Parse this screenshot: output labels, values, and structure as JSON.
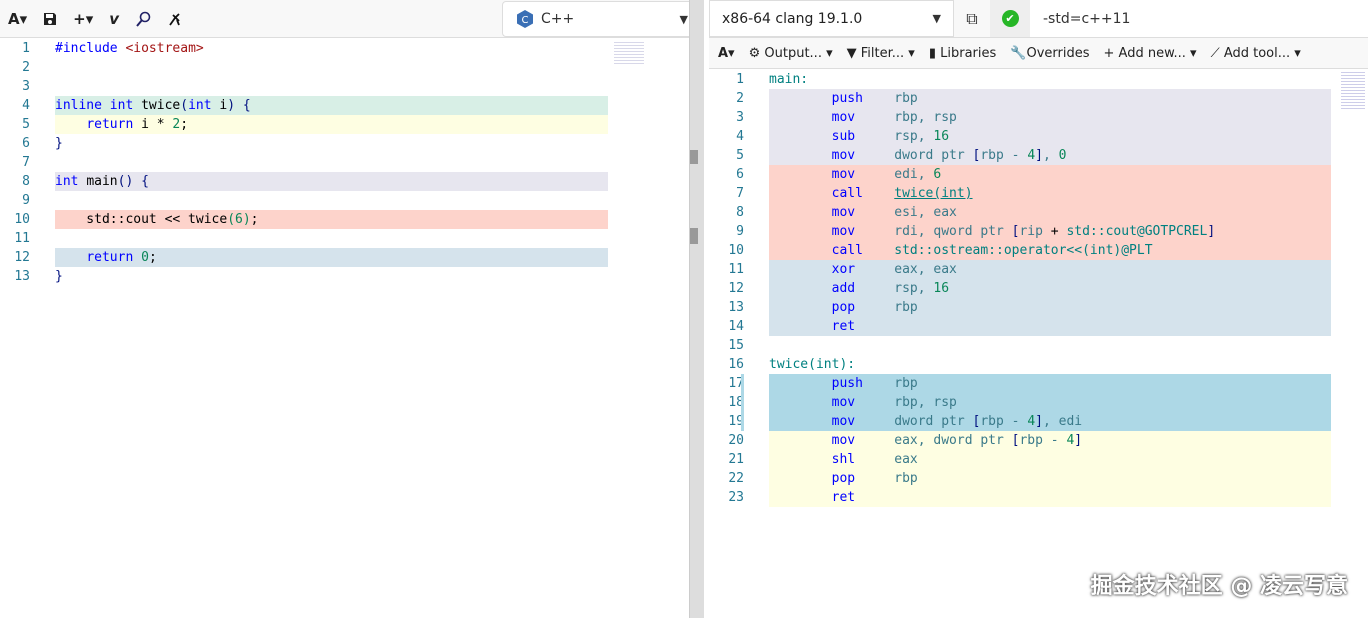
{
  "editor": {
    "toolbar": {
      "font_icon": "A▾",
      "save_icon": "save-icon",
      "add_label": "+▾",
      "vim_label": "v",
      "language": "C++"
    },
    "lines": [
      {
        "n": "1",
        "bg": "",
        "tokens": [
          [
            "pp",
            "#include "
          ],
          [
            "str",
            "<iostream>"
          ]
        ]
      },
      {
        "n": "2",
        "bg": "",
        "tokens": []
      },
      {
        "n": "3",
        "bg": "",
        "tokens": []
      },
      {
        "n": "4",
        "bg": "bg-green",
        "tokens": [
          [
            "kw",
            "inline int "
          ],
          [
            "fn",
            "twice"
          ],
          [
            "op",
            "("
          ],
          [
            "kw",
            "int "
          ],
          [
            "fn",
            "i"
          ],
          [
            "op",
            ") {"
          ]
        ]
      },
      {
        "n": "5",
        "bg": "bg-yellow",
        "tokens": [
          [
            "tx",
            "    "
          ],
          [
            "kw",
            "return "
          ],
          [
            "fn",
            "i * "
          ],
          [
            "num",
            "2"
          ],
          [
            "fn",
            ";"
          ]
        ]
      },
      {
        "n": "6",
        "bg": "",
        "tokens": [
          [
            "op",
            "}"
          ]
        ]
      },
      {
        "n": "7",
        "bg": "",
        "tokens": []
      },
      {
        "n": "8",
        "bg": "bg-lav",
        "tokens": [
          [
            "kw",
            "int "
          ],
          [
            "fn",
            "main"
          ],
          [
            "op",
            "() {"
          ]
        ]
      },
      {
        "n": "9",
        "bg": "",
        "tokens": []
      },
      {
        "n": "10",
        "bg": "bg-red",
        "tokens": [
          [
            "tx",
            "    std::cout << twice"
          ],
          [
            "num",
            "("
          ],
          [
            "num",
            "6"
          ],
          [
            "num",
            ")"
          ],
          [
            "tx",
            ";"
          ]
        ]
      },
      {
        "n": "11",
        "bg": "",
        "tokens": []
      },
      {
        "n": "12",
        "bg": "bg-blue",
        "tokens": [
          [
            "tx",
            "    "
          ],
          [
            "kw",
            "return "
          ],
          [
            "num",
            "0"
          ],
          [
            "tx",
            ";"
          ]
        ]
      },
      {
        "n": "13",
        "bg": "",
        "tokens": [
          [
            "op",
            "}"
          ]
        ]
      }
    ]
  },
  "compiler": {
    "name": "x86-64 clang 19.1.0",
    "options": "-std=c++11",
    "status": "success",
    "toolbar": [
      "Output...",
      "Filter...",
      "Libraries",
      "Overrides",
      "+ Add new...",
      "Add tool..."
    ],
    "lines": [
      {
        "n": "1",
        "bg": "",
        "tokens": [
          [
            "lbl",
            "main:"
          ]
        ]
      },
      {
        "n": "2",
        "bg": "bg-lav",
        "tokens": [
          [
            "tx",
            "        "
          ],
          [
            "kw",
            "push    "
          ],
          [
            "reg",
            "rbp"
          ]
        ]
      },
      {
        "n": "3",
        "bg": "bg-lav",
        "tokens": [
          [
            "tx",
            "        "
          ],
          [
            "kw",
            "mov     "
          ],
          [
            "reg",
            "rbp, rsp"
          ]
        ]
      },
      {
        "n": "4",
        "bg": "bg-lav",
        "tokens": [
          [
            "tx",
            "        "
          ],
          [
            "kw",
            "sub     "
          ],
          [
            "reg",
            "rsp, "
          ],
          [
            "num",
            "16"
          ]
        ]
      },
      {
        "n": "5",
        "bg": "bg-lav",
        "tokens": [
          [
            "tx",
            "        "
          ],
          [
            "kw",
            "mov     "
          ],
          [
            "reg",
            "dword ptr "
          ],
          [
            "op",
            "["
          ],
          [
            "reg",
            "rbp - "
          ],
          [
            "num",
            "4"
          ],
          [
            "op",
            "]"
          ],
          [
            "reg",
            ", "
          ],
          [
            "num",
            "0"
          ]
        ]
      },
      {
        "n": "6",
        "bg": "bg-red",
        "tokens": [
          [
            "tx",
            "        "
          ],
          [
            "kw",
            "mov     "
          ],
          [
            "reg",
            "edi, "
          ],
          [
            "num",
            "6"
          ]
        ]
      },
      {
        "n": "7",
        "bg": "bg-red",
        "tokens": [
          [
            "tx",
            "        "
          ],
          [
            "kw",
            "call    "
          ],
          [
            "lnk",
            "twice(int)"
          ]
        ]
      },
      {
        "n": "8",
        "bg": "bg-red",
        "tokens": [
          [
            "tx",
            "        "
          ],
          [
            "kw",
            "mov     "
          ],
          [
            "reg",
            "esi, eax"
          ]
        ]
      },
      {
        "n": "9",
        "bg": "bg-red",
        "tokens": [
          [
            "tx",
            "        "
          ],
          [
            "kw",
            "mov     "
          ],
          [
            "reg",
            "rdi, qword ptr "
          ],
          [
            "op",
            "["
          ],
          [
            "reg",
            "rip "
          ],
          [
            "tx",
            "+ "
          ],
          [
            "lbl",
            "std::cout@GOTPCREL"
          ],
          [
            "op",
            "]"
          ]
        ]
      },
      {
        "n": "10",
        "bg": "bg-red",
        "tokens": [
          [
            "tx",
            "        "
          ],
          [
            "kw",
            "call    "
          ],
          [
            "lbl",
            "std::ostream::operator<<(int)@PLT"
          ]
        ]
      },
      {
        "n": "11",
        "bg": "bg-blue",
        "tokens": [
          [
            "tx",
            "        "
          ],
          [
            "kw",
            "xor     "
          ],
          [
            "reg",
            "eax, eax"
          ]
        ]
      },
      {
        "n": "12",
        "bg": "bg-blue",
        "tokens": [
          [
            "tx",
            "        "
          ],
          [
            "kw",
            "add     "
          ],
          [
            "reg",
            "rsp, "
          ],
          [
            "num",
            "16"
          ]
        ]
      },
      {
        "n": "13",
        "bg": "bg-blue",
        "tokens": [
          [
            "tx",
            "        "
          ],
          [
            "kw",
            "pop     "
          ],
          [
            "reg",
            "rbp"
          ]
        ]
      },
      {
        "n": "14",
        "bg": "bg-blue",
        "tokens": [
          [
            "tx",
            "        "
          ],
          [
            "kw",
            "ret"
          ]
        ]
      },
      {
        "n": "15",
        "bg": "",
        "tokens": []
      },
      {
        "n": "16",
        "bg": "",
        "tokens": [
          [
            "lbl",
            "twice(int):"
          ]
        ]
      },
      {
        "n": "17",
        "bg": "bg-cyan",
        "tokens": [
          [
            "tx",
            "        "
          ],
          [
            "kw",
            "push    "
          ],
          [
            "reg",
            "rbp"
          ]
        ]
      },
      {
        "n": "18",
        "bg": "bg-cyan",
        "tokens": [
          [
            "tx",
            "        "
          ],
          [
            "kw",
            "mov     "
          ],
          [
            "reg",
            "rbp, rsp"
          ]
        ]
      },
      {
        "n": "19",
        "bg": "bg-cyan",
        "tokens": [
          [
            "tx",
            "        "
          ],
          [
            "kw",
            "mov     "
          ],
          [
            "reg",
            "dword ptr "
          ],
          [
            "op",
            "["
          ],
          [
            "reg",
            "rbp - "
          ],
          [
            "num",
            "4"
          ],
          [
            "op",
            "]"
          ],
          [
            "reg",
            ", edi"
          ]
        ]
      },
      {
        "n": "20",
        "bg": "bg-yellow",
        "tokens": [
          [
            "tx",
            "        "
          ],
          [
            "kw",
            "mov     "
          ],
          [
            "reg",
            "eax, dword ptr "
          ],
          [
            "op",
            "["
          ],
          [
            "reg",
            "rbp - "
          ],
          [
            "num",
            "4"
          ],
          [
            "op",
            "]"
          ]
        ]
      },
      {
        "n": "21",
        "bg": "bg-yellow",
        "tokens": [
          [
            "tx",
            "        "
          ],
          [
            "kw",
            "shl     "
          ],
          [
            "reg",
            "eax"
          ]
        ]
      },
      {
        "n": "22",
        "bg": "bg-yellow",
        "tokens": [
          [
            "tx",
            "        "
          ],
          [
            "kw",
            "pop     "
          ],
          [
            "reg",
            "rbp"
          ]
        ]
      },
      {
        "n": "23",
        "bg": "bg-yellow",
        "tokens": [
          [
            "tx",
            "        "
          ],
          [
            "kw",
            "ret"
          ]
        ]
      }
    ]
  },
  "watermark": "掘金技术社区 @ 凌云写意"
}
